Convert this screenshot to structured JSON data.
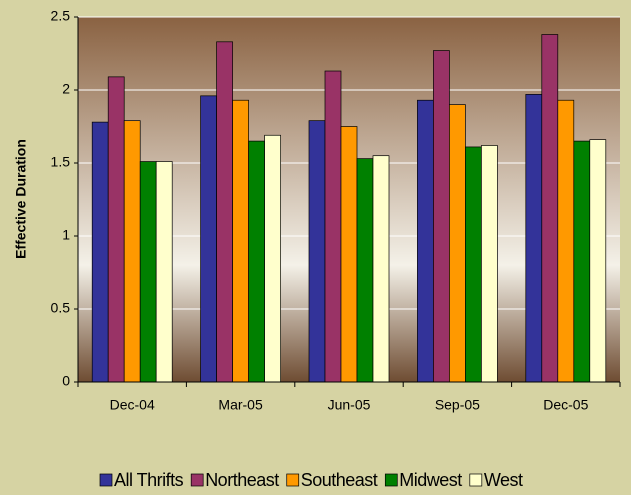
{
  "chart_data": {
    "type": "bar",
    "y_label": "Effective Duration",
    "categories": [
      "Dec-04",
      "Mar-05",
      "Jun-05",
      "Sep-05",
      "Dec-05"
    ],
    "series": [
      {
        "name": "All Thrifts",
        "color": "#333399",
        "values": [
          1.78,
          1.96,
          1.79,
          1.93,
          1.97
        ]
      },
      {
        "name": "Northeast",
        "color": "#993366",
        "values": [
          2.09,
          2.33,
          2.13,
          2.27,
          2.38
        ]
      },
      {
        "name": "Southeast",
        "color": "#ff9900",
        "values": [
          1.79,
          1.93,
          1.75,
          1.9,
          1.93
        ]
      },
      {
        "name": "Midwest",
        "color": "#008000",
        "values": [
          1.51,
          1.65,
          1.53,
          1.61,
          1.65
        ]
      },
      {
        "name": "West",
        "color": "#ffffcc",
        "values": [
          1.51,
          1.69,
          1.55,
          1.62,
          1.66
        ]
      }
    ],
    "ylim": [
      0,
      2.5
    ],
    "yticks": [
      0,
      0.5,
      1,
      1.5,
      2,
      2.5
    ],
    "grid": true,
    "legend": "bottom"
  }
}
